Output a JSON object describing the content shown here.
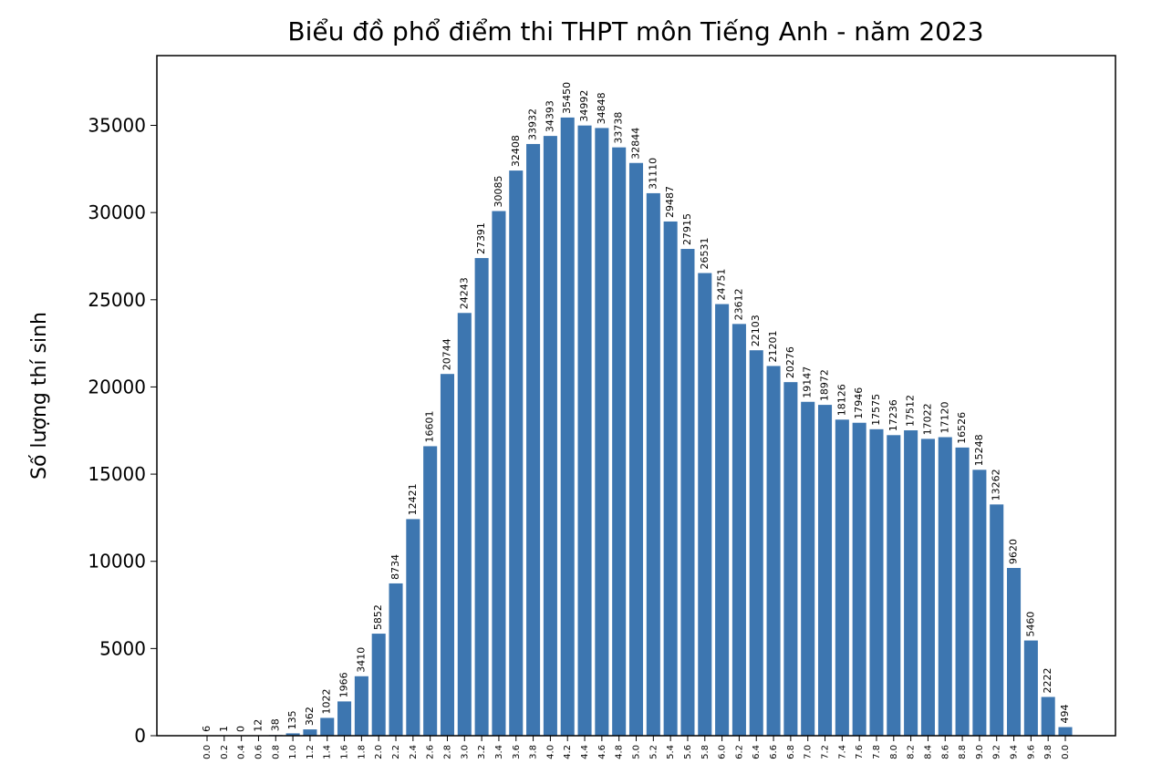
{
  "chart_data": {
    "type": "bar",
    "title": "Biểu đồ phổ điểm thi THPT môn Tiếng Anh - năm 2023",
    "y_label": "Số lượng thí sinh",
    "categories": [
      "0.0",
      "0.2",
      "0.4",
      "0.6",
      "0.8",
      "1.0",
      "1.2",
      "1.4",
      "1.6",
      "1.8",
      "2.0",
      "2.2",
      "2.4",
      "2.6",
      "2.8",
      "3.0",
      "3.2",
      "3.4",
      "3.6",
      "3.8",
      "4.0",
      "4.2",
      "4.4",
      "4.6",
      "4.8",
      "5.0",
      "5.2",
      "5.4",
      "5.6",
      "5.8",
      "6.0",
      "6.2",
      "6.4",
      "6.6",
      "6.8",
      "7.0",
      "7.2",
      "7.4",
      "7.6",
      "7.8",
      "8.0",
      "8.2",
      "8.4",
      "8.6",
      "8.8",
      "9.0",
      "9.2",
      "9.4",
      "9.6",
      "9.8",
      "0.0"
    ],
    "values": [
      6,
      1,
      0,
      12,
      38,
      135,
      362,
      1022,
      1966,
      3410,
      5852,
      8734,
      12421,
      16601,
      20744,
      24243,
      27391,
      30085,
      32408,
      33932,
      34393,
      35450,
      34992,
      34848,
      33738,
      32844,
      31110,
      29487,
      27915,
      26531,
      24751,
      23612,
      22103,
      21201,
      20276,
      19147,
      18972,
      18126,
      17946,
      17575,
      17236,
      17512,
      17022,
      17120,
      16526,
      15248,
      13262,
      9620,
      5460,
      2222,
      494
    ],
    "color": "#3d76b0",
    "ylim": [
      0,
      39000
    ],
    "yticks": [
      0,
      5000,
      10000,
      15000,
      20000,
      25000,
      30000,
      35000
    ],
    "grid": false
  }
}
